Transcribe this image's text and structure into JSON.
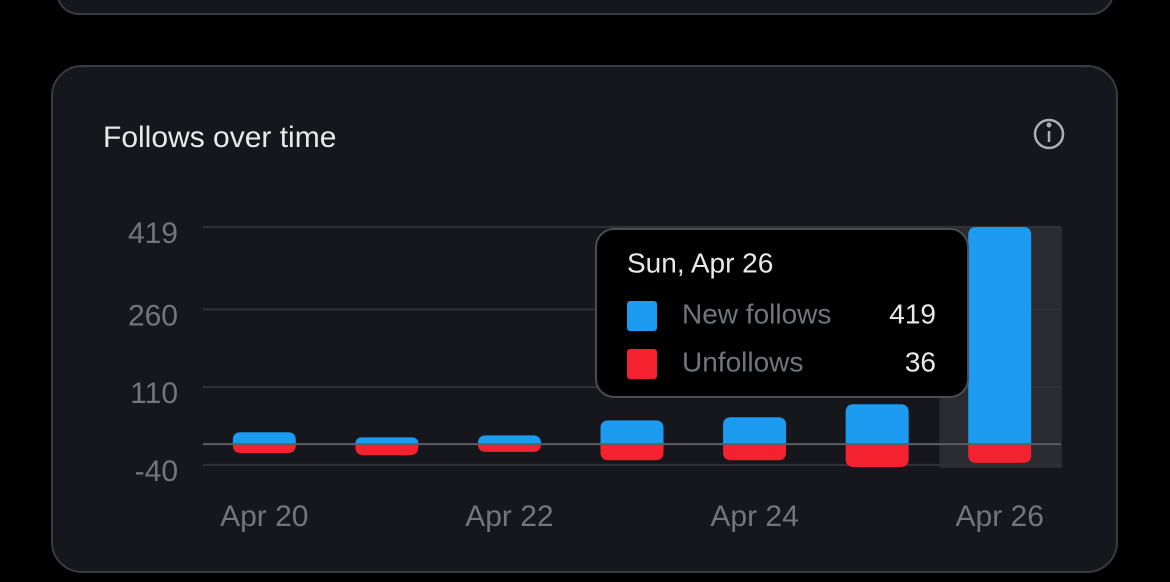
{
  "chart_data": {
    "type": "bar",
    "title": "Follows over time",
    "categories": [
      "Apr 20",
      null,
      "Apr 22",
      null,
      "Apr 24",
      null,
      "Apr 26"
    ],
    "series": [
      {
        "name": "New follows",
        "color": "#1d9bf0",
        "values": [
          23,
          13,
          17,
          46,
          52,
          77,
          419
        ]
      },
      {
        "name": "Unfollows",
        "color": "#f4212e",
        "values": [
          -17,
          -21,
          -15,
          -31,
          -31,
          -44,
          -36
        ]
      }
    ],
    "ylim": [
      -46,
      419
    ],
    "yticks": [
      -40,
      110,
      260,
      419
    ],
    "grid": true,
    "tooltip": {
      "title": "Sun, Apr 26",
      "rows": [
        {
          "name": "New follows",
          "color": "#1d9bf0",
          "value": 419
        },
        {
          "name": "Unfollows",
          "color": "#f4212e",
          "value": 36
        }
      ]
    }
  }
}
